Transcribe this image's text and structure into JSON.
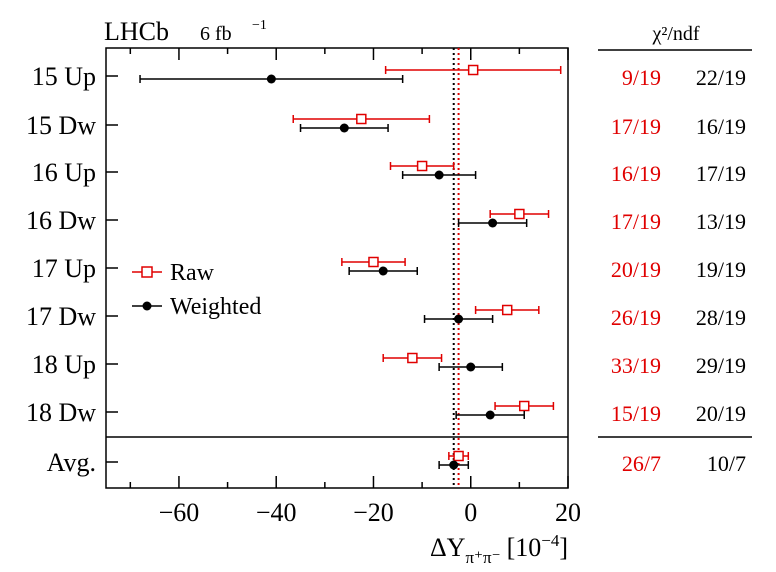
{
  "chart_data": {
    "type": "scatter",
    "title": "LHCb",
    "luminosity": "6 fb",
    "luminosity_exp": "−1",
    "xlabel": "ΔY",
    "xlabel_sub": "π⁺π⁻",
    "xlabel_unit": "[10",
    "xlabel_unit_exp": "−4",
    "xlabel_unit_close": "]",
    "xlim": [
      -75,
      20
    ],
    "xticks": [
      -60,
      -40,
      -20,
      0,
      20
    ],
    "xtick_labels": [
      "−60",
      "−40",
      "−20",
      "0",
      "20"
    ],
    "reference_lines": {
      "raw": -2.5,
      "weighted": -3.5
    },
    "legend": [
      {
        "name": "Raw",
        "color": "#e00000"
      },
      {
        "name": "Weighted",
        "color": "#000000"
      }
    ],
    "categories": [
      "15 Up",
      "15 Dw",
      "16 Up",
      "16 Dw",
      "17 Up",
      "17 Dw",
      "18 Up",
      "18 Dw",
      "Avg."
    ],
    "series": [
      {
        "name": "Raw",
        "color": "#e00000",
        "marker": "open-square",
        "values": [
          0.5,
          -22.5,
          -10,
          10,
          -20,
          7.5,
          -12,
          11,
          -2.5
        ],
        "errors": [
          18,
          14,
          6.5,
          6,
          6.5,
          6.5,
          6,
          6,
          2
        ]
      },
      {
        "name": "Weighted",
        "color": "#000000",
        "marker": "filled-circle",
        "values": [
          -41,
          -26,
          -6.5,
          4.5,
          -18,
          -2.5,
          0,
          4,
          -3.5
        ],
        "errors": [
          27,
          9,
          7.5,
          7,
          7,
          7,
          6.5,
          7,
          3
        ]
      }
    ],
    "chi2_header": "χ²/ndf",
    "chi2_raw": [
      "9/19",
      "17/19",
      "16/19",
      "17/19",
      "20/19",
      "26/19",
      "33/19",
      "15/19",
      "26/7"
    ],
    "chi2_weighted": [
      "22/19",
      "16/19",
      "17/19",
      "13/19",
      "19/19",
      "28/19",
      "29/19",
      "20/19",
      "10/7"
    ]
  }
}
